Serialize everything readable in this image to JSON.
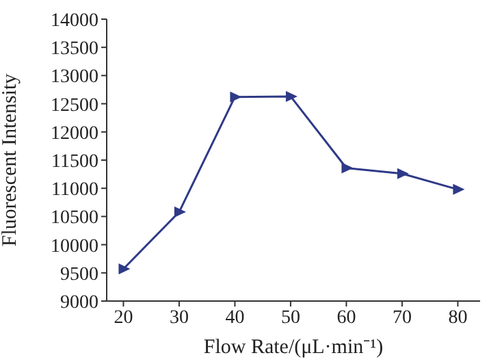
{
  "chart_data": {
    "type": "line",
    "xlabel": "Flow Rate/(μL·min⁻¹)",
    "ylabel": "Fluorescent Intensity",
    "x": [
      20,
      30,
      40,
      50,
      60,
      70,
      80
    ],
    "series": [
      {
        "color": "#2e3a87",
        "values": [
          9570,
          10580,
          12620,
          12630,
          11360,
          11260,
          10980
        ]
      }
    ],
    "xlim": [
      17,
      84
    ],
    "xticks": [
      20,
      30,
      40,
      50,
      60,
      70,
      80
    ],
    "ylim": [
      9000,
      14000
    ],
    "yticks": [
      9000,
      9500,
      10000,
      10500,
      11000,
      11500,
      12000,
      12500,
      13000,
      13500,
      14000
    ],
    "marker": "triangle",
    "line_style": "solid",
    "grid": false,
    "legend": false
  }
}
